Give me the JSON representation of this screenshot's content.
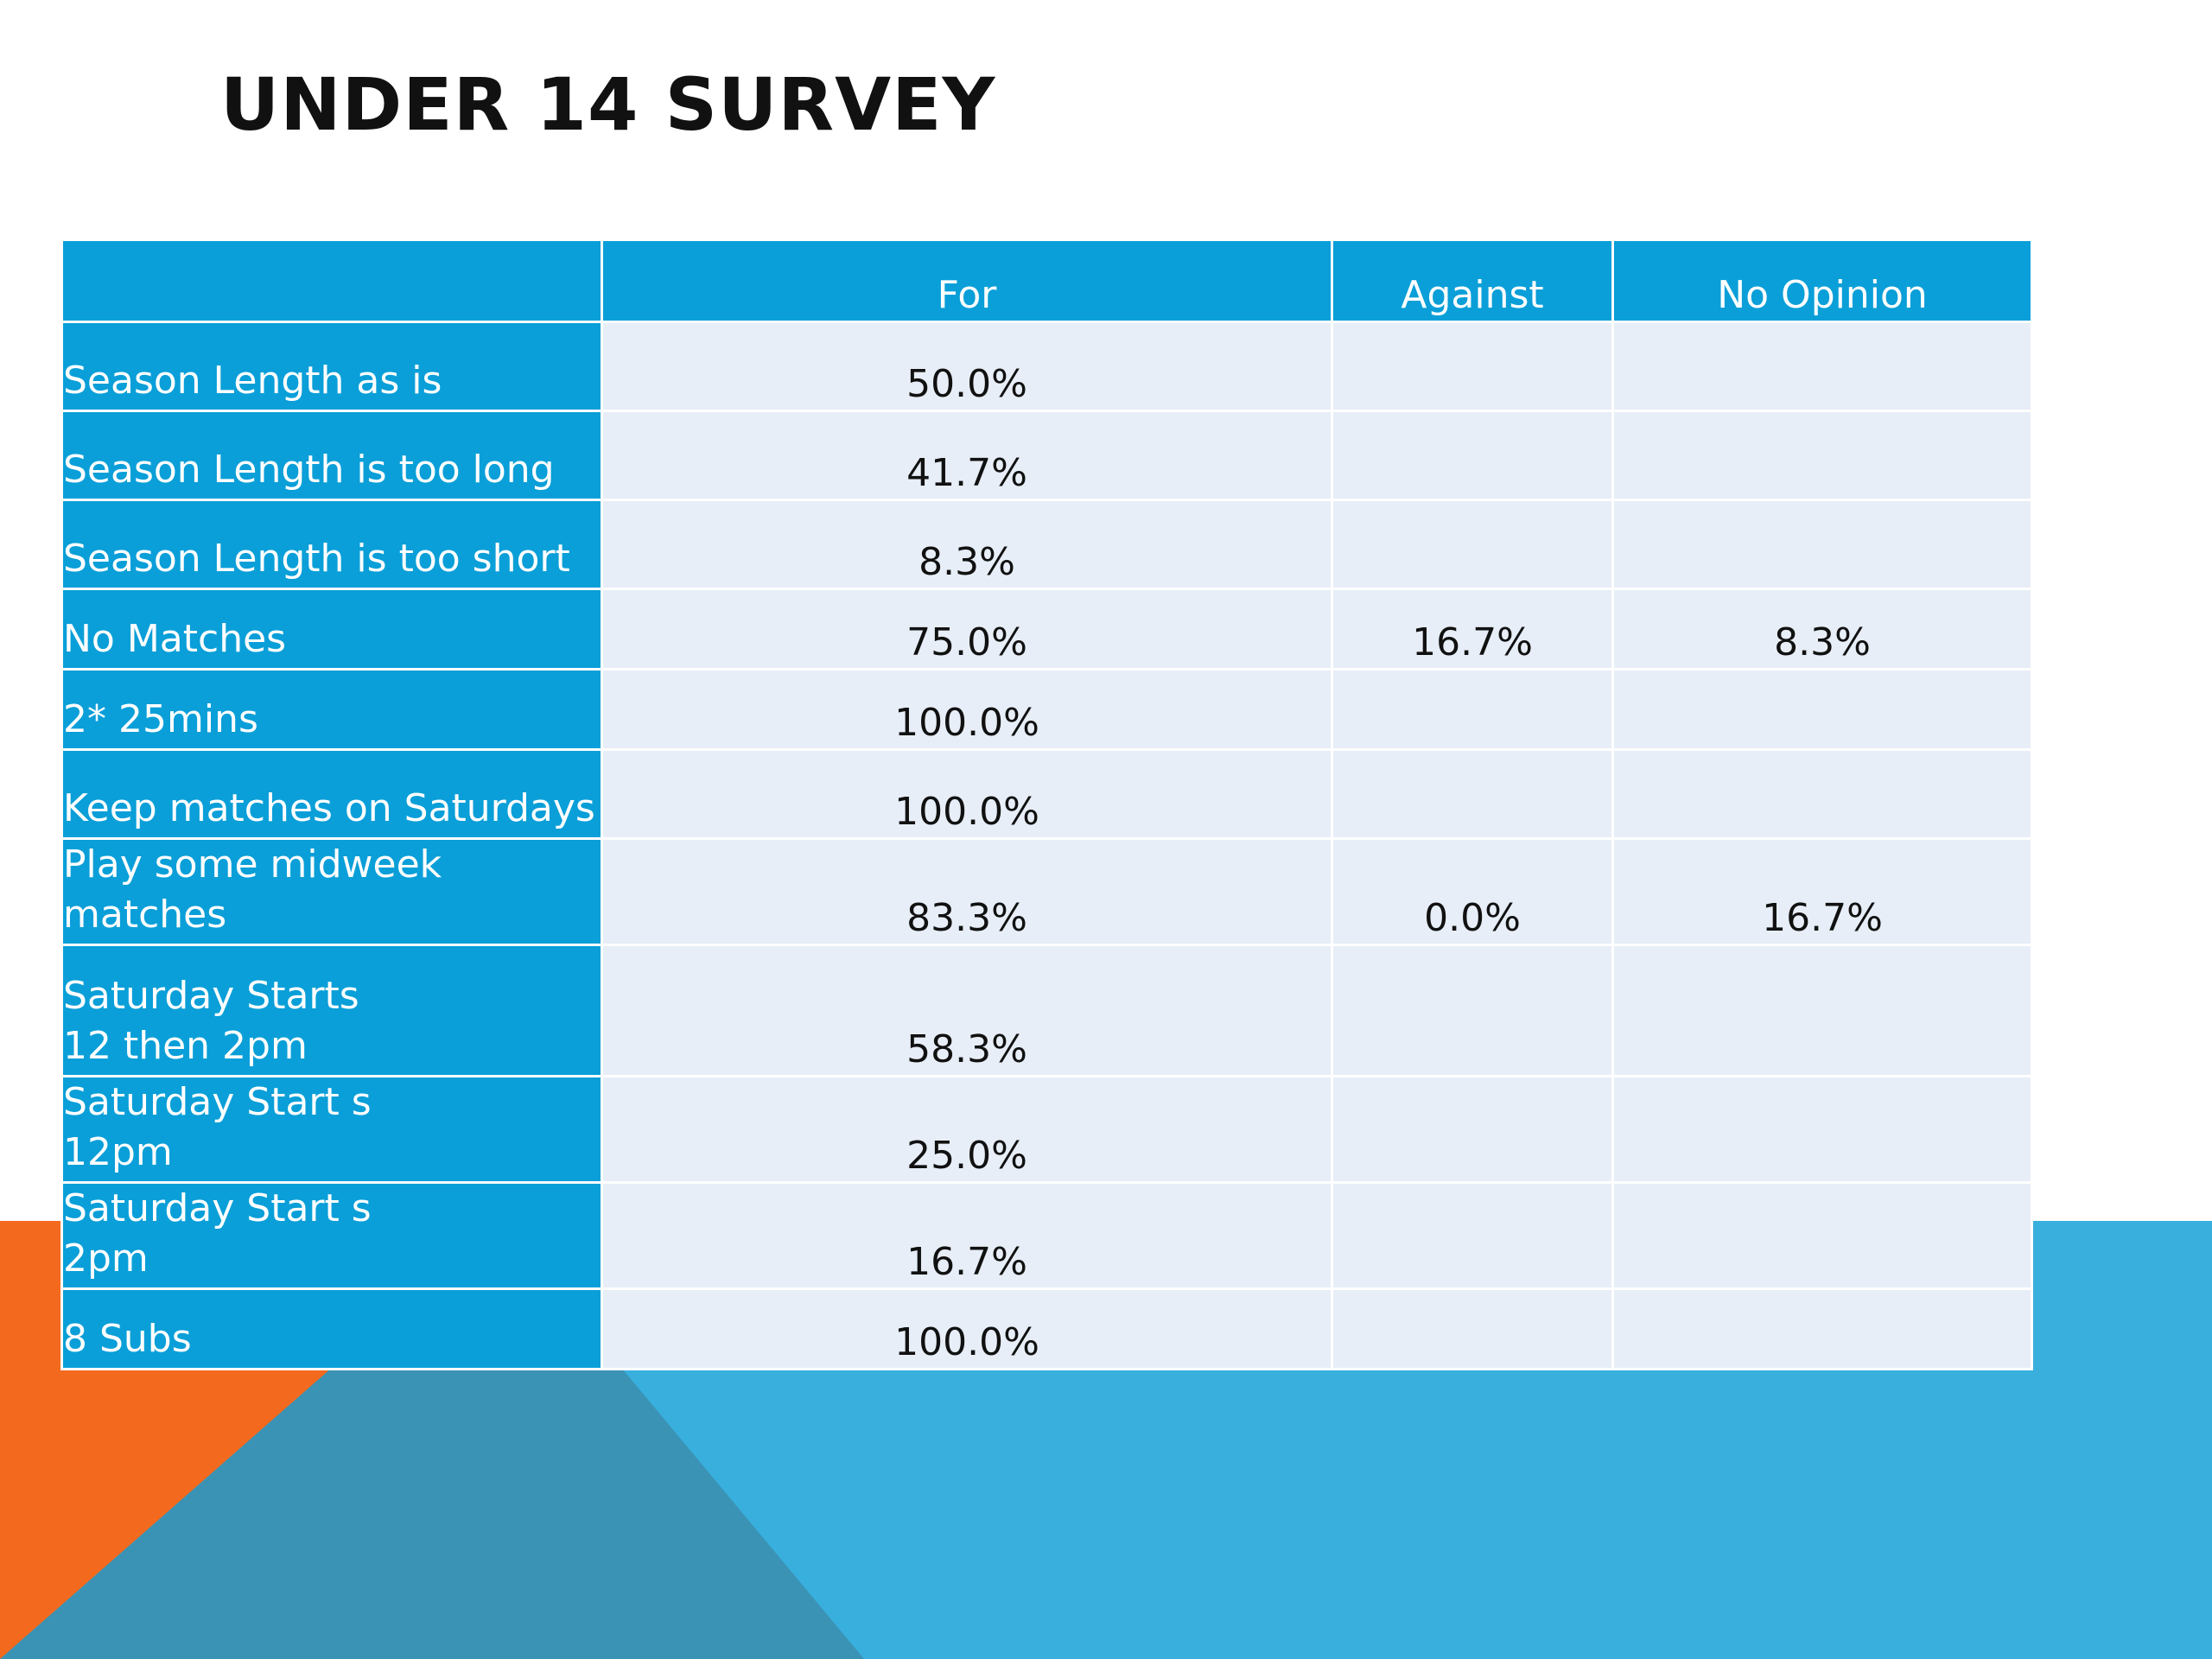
{
  "colors": {
    "orange": "#f36a1e",
    "blue_light": "#38afdc",
    "blue_dark": "#3a93b5",
    "header_blue": "#0a9fd8",
    "cell_bg": "#e7eef7"
  },
  "slide": {
    "title": "UNDER 14 SURVEY"
  },
  "table": {
    "headers": [
      "",
      "For",
      "Against",
      "No Opinion"
    ],
    "rows": [
      {
        "label": "Season Length as is",
        "for": "50.0%",
        "against": "",
        "no_opinion": ""
      },
      {
        "label": "Season Length is too long",
        "for": "41.7%",
        "against": "",
        "no_opinion": ""
      },
      {
        "label": "Season Length is too short",
        "for": "8.3%",
        "against": "",
        "no_opinion": ""
      },
      {
        "label": "No Matches",
        "for": "75.0%",
        "against": "16.7%",
        "no_opinion": "8.3%"
      },
      {
        "label": "2* 25mins",
        "for": "100.0%",
        "against": "",
        "no_opinion": ""
      },
      {
        "label": "Keep matches on Saturdays",
        "for": "100.0%",
        "against": "",
        "no_opinion": ""
      },
      {
        "label": "Play some midweek matches",
        "for": "83.3%",
        "against": "0.0%",
        "no_opinion": "16.7%"
      },
      {
        "label": "Saturday Starts\n12 then 2pm",
        "for": "58.3%",
        "against": "",
        "no_opinion": ""
      },
      {
        "label": "Saturday Start s\n12pm",
        "for": "25.0%",
        "against": "",
        "no_opinion": ""
      },
      {
        "label": "Saturday Start s\n2pm",
        "for": "16.7%",
        "against": "",
        "no_opinion": ""
      },
      {
        "label": "8 Subs",
        "for": "100.0%",
        "against": "",
        "no_opinion": ""
      }
    ]
  }
}
